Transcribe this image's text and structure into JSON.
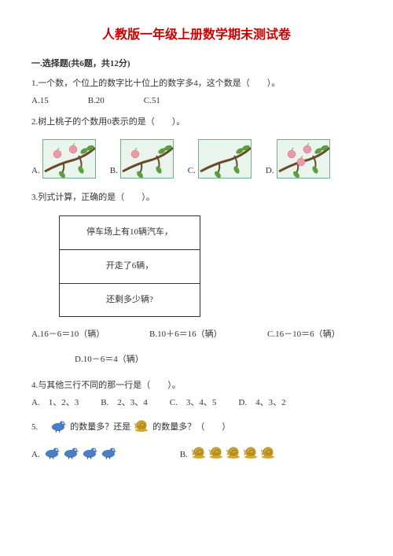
{
  "title": "人教版一年级上册数学期末测试卷",
  "section1": {
    "header": "一.选择题(共6题，共12分)",
    "q1": {
      "text": "1.一个数，个位上的数字比十位上的数字多4，这个数是（　　）。",
      "optA": "A.15",
      "optB": "B.20",
      "optC": "C.51"
    },
    "q2": {
      "text": "2.树上桃子的个数用0表示的是（　　）。",
      "labelA": "A.",
      "labelB": "B.",
      "labelC": "C.",
      "labelD": "D.",
      "peach_color": "#e89aa8",
      "branch_color": "#6b4a2a",
      "leaf_color": "#5a9e3e",
      "box_bg": "#e8f4ec",
      "box_border": "#7aaf88"
    },
    "q3": {
      "text": "3.列式计算，正确的是（　　）。",
      "row1": "停车场上有10辆汽车，",
      "row2": "开走了6辆，",
      "row3": "还剩多少辆?",
      "optA": "A.16－6＝10（辆）",
      "optB": "B.10＋6＝16（辆）",
      "optC": "C.16－10＝6（辆）",
      "optD": "D.10－6＝4（辆）"
    },
    "q4": {
      "text": "4.与其他三行不同的那一行是（　　）。",
      "optA": "A.　1、2、3",
      "optB": "B.　2、3、4",
      "optC": "C.　3、4、5",
      "optD": "D.　4、3、2"
    },
    "q5": {
      "text_prefix": "5.　",
      "text_mid": "的数量多？还是",
      "text_suffix": "的数量多？（　　）",
      "labelA": "A.",
      "labelB": "B.",
      "bird_color": "#4a7ec4",
      "snail_color": "#d4a830",
      "bird_count": 4,
      "snail_count": 5
    }
  }
}
